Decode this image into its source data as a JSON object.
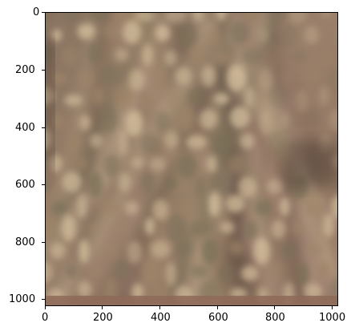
{
  "image": {
    "subject": "blurred-pattern-photo",
    "palette": {
      "base": "#8a6f5c",
      "light": "#d8c3a0",
      "mid": "#9e8468",
      "dark": "#4a3a32",
      "olive": "#7a7058",
      "rose": "#a8887a",
      "dark_edge": "#3a2c28"
    }
  },
  "axes": {
    "x_ticks": [
      "0",
      "200",
      "400",
      "600",
      "800",
      "1000"
    ],
    "y_ticks": [
      "0",
      "200",
      "400",
      "600",
      "800",
      "1000"
    ],
    "x_range": [
      0,
      1024
    ],
    "y_range": [
      0,
      1024
    ],
    "y_inverted": true
  }
}
